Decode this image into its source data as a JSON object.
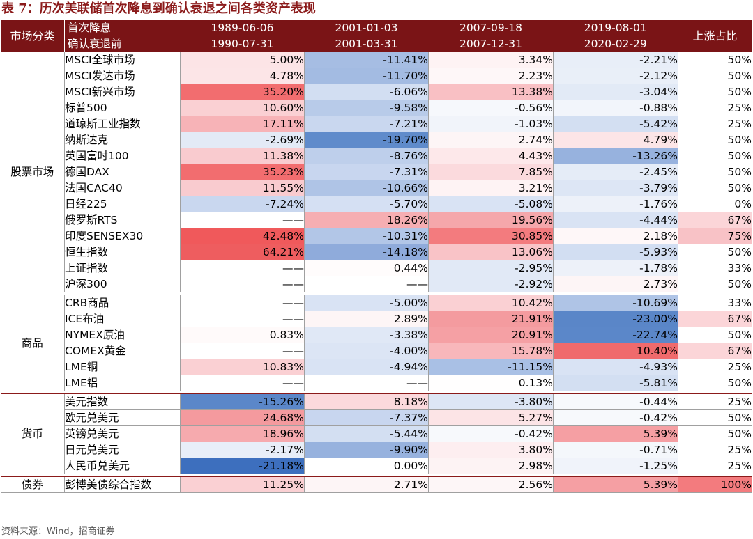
{
  "title": "表 7：历次美联储首次降息到确认衰退之间各类资产表现",
  "header": {
    "category_label": "市场分类",
    "row1_label": "首次降息",
    "row2_label": "确认衰退前",
    "periods": [
      {
        "start": "1989-06-06",
        "end": "1990-07-31"
      },
      {
        "start": "2001-01-03",
        "end": "2001-03-31"
      },
      {
        "start": "2007-09-18",
        "end": "2007-12-31"
      },
      {
        "start": "2019-08-01",
        "end": "2020-02-29"
      }
    ],
    "ratio_label": "上涨占比"
  },
  "groups": [
    {
      "name": "股票市场",
      "rows": [
        {
          "name": "MSCI全球市场",
          "values": [
            "5.00%",
            "-11.41%",
            "3.34%",
            "-2.21%"
          ],
          "ratio": "50%",
          "colors": [
            "#fce4e6",
            "#a6bde3",
            "#fef3f4",
            "#e8eef8"
          ],
          "ratio_color": "#ffffff"
        },
        {
          "name": "MSCI发达市场",
          "values": [
            "4.78%",
            "-11.70%",
            "2.23%",
            "-2.12%"
          ],
          "ratio": "50%",
          "colors": [
            "#fce5e7",
            "#a3bbe2",
            "#fef7f8",
            "#e9eff8"
          ],
          "ratio_color": "#ffffff"
        },
        {
          "name": "MSCI新兴市场",
          "values": [
            "35.20%",
            "-6.06%",
            "13.38%",
            "-3.04%"
          ],
          "ratio": "50%",
          "colors": [
            "#f26d6f",
            "#d2def2",
            "#f9c0c4",
            "#e2eaf6"
          ],
          "ratio_color": "#ffffff"
        },
        {
          "name": "标普500",
          "values": [
            "10.60%",
            "-9.58%",
            "-0.56%",
            "-0.88%"
          ],
          "ratio": "25%",
          "colors": [
            "#fad0d3",
            "#b8cbe9",
            "#f6f8fc",
            "#f2f5fb"
          ],
          "ratio_color": "#ffffff"
        },
        {
          "name": "道琼斯工业指数",
          "values": [
            "17.11%",
            "-7.21%",
            "-1.03%",
            "-5.42%"
          ],
          "ratio": "25%",
          "colors": [
            "#f7b3b7",
            "#c9d7ef",
            "#f1f4fa",
            "#d3dff2"
          ],
          "ratio_color": "#ffffff"
        },
        {
          "name": "纳斯达克",
          "values": [
            "-2.69%",
            "-19.70%",
            "2.74%",
            "4.79%"
          ],
          "ratio": "50%",
          "colors": [
            "#e3eaf6",
            "#5f8bcb",
            "#fdf5f6",
            "#fce5e7"
          ],
          "ratio_color": "#ffffff"
        },
        {
          "name": "英国富时100",
          "values": [
            "11.38%",
            "-8.76%",
            "4.43%",
            "-13.26%"
          ],
          "ratio": "50%",
          "colors": [
            "#f9cbcf",
            "#becfeb",
            "#fde8ea",
            "#97b2de"
          ],
          "ratio_color": "#ffffff"
        },
        {
          "name": "德国DAX",
          "values": [
            "35.23%",
            "-7.31%",
            "7.85%",
            "-2.45%"
          ],
          "ratio": "50%",
          "colors": [
            "#f26d6f",
            "#c8d6ef",
            "#fbdadd",
            "#e5ecf7"
          ],
          "ratio_color": "#ffffff"
        },
        {
          "name": "法国CAC40",
          "values": [
            "11.55%",
            "-10.66%",
            "3.21%",
            "-3.79%"
          ],
          "ratio": "50%",
          "colors": [
            "#f9cbcf",
            "#afc4e6",
            "#fef3f4",
            "#dde6f5"
          ],
          "ratio_color": "#ffffff"
        },
        {
          "name": "日经225",
          "values": [
            "-7.24%",
            "-5.70%",
            "-5.08%",
            "-1.76%"
          ],
          "ratio": "0%",
          "colors": [
            "#c9d7ef",
            "#d5e0f3",
            "#d9e3f4",
            "#edf1f9"
          ],
          "ratio_color": "#ffffff"
        },
        {
          "name": "俄罗斯RTS",
          "values": [
            "——",
            "18.26%",
            "19.56%",
            "-4.44%"
          ],
          "ratio": "67%",
          "colors": [
            "#ffffff",
            "#f6aeb2",
            "#f5a7ab",
            "#d9e3f4"
          ],
          "ratio_color": "#fbd5d8"
        },
        {
          "name": "印度SENSEX30",
          "values": [
            "42.48%",
            "-10.31%",
            "30.85%",
            "2.18%"
          ],
          "ratio": "75%",
          "colors": [
            "#f0595b",
            "#b2c6e7",
            "#f37b7e",
            "#fef7f8"
          ],
          "ratio_color": "#f8c2c6"
        },
        {
          "name": "恒生指数",
          "values": [
            "64.21%",
            "-14.18%",
            "13.06%",
            "-5.93%"
          ],
          "ratio": "50%",
          "colors": [
            "#ee5d5f",
            "#8fabdb",
            "#f9c3c7",
            "#d2def2"
          ],
          "ratio_color": "#ffffff"
        },
        {
          "name": "上证指数",
          "values": [
            "——",
            "0.44%",
            "-2.95%",
            "-1.78%"
          ],
          "ratio": "33%",
          "colors": [
            "#ffffff",
            "#fffcfc",
            "#e1e9f6",
            "#edf1f9"
          ],
          "ratio_color": "#ffffff"
        },
        {
          "name": "沪深300",
          "values": [
            "——",
            "——",
            "-2.92%",
            "2.73%"
          ],
          "ratio": "50%",
          "colors": [
            "#ffffff",
            "#ffffff",
            "#e1e9f6",
            "#fdf5f6"
          ],
          "ratio_color": "#ffffff"
        }
      ]
    },
    {
      "name": "商品",
      "rows": [
        {
          "name": "CRB商品",
          "values": [
            "——",
            "-5.00%",
            "10.42%",
            "-10.69%"
          ],
          "ratio": "33%",
          "colors": [
            "#ffffff",
            "#d9e3f4",
            "#fad0d3",
            "#afc4e6"
          ],
          "ratio_color": "#ffffff"
        },
        {
          "name": "ICE布油",
          "values": [
            "——",
            "2.89%",
            "21.91%",
            "-23.00%"
          ],
          "ratio": "67%",
          "colors": [
            "#ffffff",
            "#fdf5f6",
            "#f49b9f",
            "#5a86c8"
          ],
          "ratio_color": "#fbd5d8"
        },
        {
          "name": "NYMEX原油",
          "values": [
            "0.83%",
            "-3.38%",
            "20.91%",
            "-22.74%"
          ],
          "ratio": "50%",
          "colors": [
            "#fffafa",
            "#e0e8f6",
            "#f5a0a4",
            "#5b87c9"
          ],
          "ratio_color": "#ffffff"
        },
        {
          "name": "COMEX黄金",
          "values": [
            "——",
            "-4.00%",
            "15.78%",
            "10.40%"
          ],
          "ratio": "67%",
          "colors": [
            "#ffffff",
            "#dce5f5",
            "#f8b7bb",
            "#f06a6c"
          ],
          "ratio_color": "#fbd5d8"
        },
        {
          "name": "LME铜",
          "values": [
            "10.83%",
            "-4.94%",
            "-11.15%",
            "-4.93%"
          ],
          "ratio": "25%",
          "colors": [
            "#fad0d3",
            "#d9e3f4",
            "#a9c0e5",
            "#d9e3f4"
          ],
          "ratio_color": "#ffffff"
        },
        {
          "name": "LME铝",
          "values": [
            "——",
            "——",
            "0.13%",
            "-5.81%"
          ],
          "ratio": "50%",
          "colors": [
            "#ffffff",
            "#ffffff",
            "#fffefe",
            "#d3dff2"
          ],
          "ratio_color": "#ffffff"
        }
      ]
    },
    {
      "name": "货币",
      "rows": [
        {
          "name": "美元指数",
          "values": [
            "-15.26%",
            "8.18%",
            "-3.80%",
            "-0.44%"
          ],
          "ratio": "25%",
          "colors": [
            "#5b87c9",
            "#fbd9dc",
            "#dde6f5",
            "#f7f9fc"
          ],
          "ratio_color": "#ffffff"
        },
        {
          "name": "欧元兑美元",
          "values": [
            "24.68%",
            "-7.37%",
            "5.27%",
            "-0.42%"
          ],
          "ratio": "50%",
          "colors": [
            "#f49a9e",
            "#c8d6ef",
            "#fce4e6",
            "#f7f9fc"
          ],
          "ratio_color": "#ffffff"
        },
        {
          "name": "英镑兑美元",
          "values": [
            "18.96%",
            "-5.44%",
            "-0.42%",
            "5.39%"
          ],
          "ratio": "50%",
          "colors": [
            "#f6aaae",
            "#d3dff2",
            "#f7f9fc",
            "#f59fa3"
          ],
          "ratio_color": "#ffffff"
        },
        {
          "name": "日元兑美元",
          "values": [
            "-2.17%",
            "-9.90%",
            "3.80%",
            "-0.71%"
          ],
          "ratio": "25%",
          "colors": [
            "#e8eef8",
            "#97b2de",
            "#fdeef0",
            "#f4f7fb"
          ],
          "ratio_color": "#ffffff"
        },
        {
          "name": "人民币兑美元",
          "values": [
            "-21.18%",
            "0.00%",
            "2.98%",
            "-1.25%"
          ],
          "ratio": "25%",
          "colors": [
            "#3d6fbe",
            "#ffffff",
            "#fdf3f4",
            "#f0f3fa"
          ],
          "ratio_color": "#ffffff"
        }
      ]
    },
    {
      "name": "债券",
      "rows": [
        {
          "name": "彭博美债综合指数",
          "values": [
            "11.25%",
            "2.71%",
            "2.56%",
            "5.39%"
          ],
          "ratio": "100%",
          "colors": [
            "#fad0d3",
            "#fdf5f6",
            "#fdf6f7",
            "#f59fa3"
          ],
          "ratio_color": "#f37b7e"
        }
      ]
    }
  ],
  "footnote": "资料来源：Wind，招商证券"
}
